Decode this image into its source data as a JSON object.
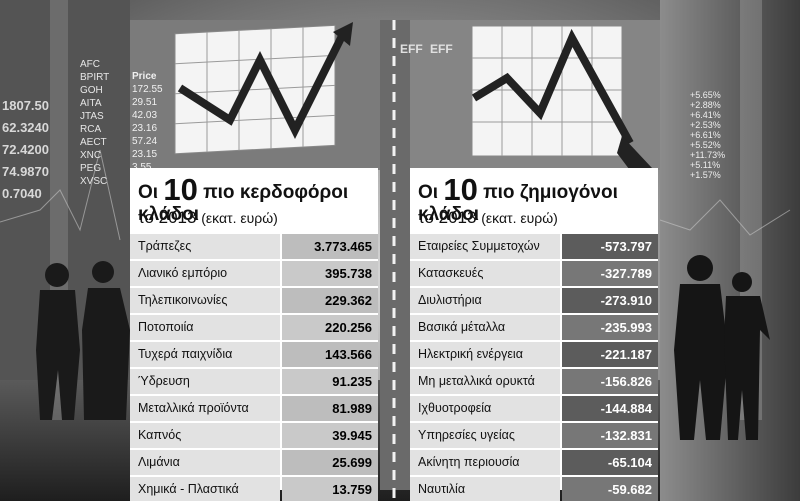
{
  "chart_data": [
    {
      "type": "table",
      "title_prefix": "Οι",
      "title_number": "10",
      "title_rest": "πιο κερδοφόροι κλάδοι",
      "subtitle_year": "το 2013",
      "subtitle_unit": "(εκατ. ευρώ)",
      "categories": [
        "Τράπεζες",
        "Λιανικό εμπόριο",
        "Τηλεπικοινωνίες",
        "Ποτοποιία",
        "Τυχερά παιχνίδια",
        "Ύδρευση",
        "Μεταλλικά προϊόντα",
        "Καπνός",
        "Λιμάνια",
        "Χημικά - Πλαστικά"
      ],
      "value_labels": [
        "3.773.465",
        "395.738",
        "229.362",
        "220.256",
        "143.566",
        "91.235",
        "81.989",
        "39.945",
        "25.699",
        "13.759"
      ],
      "values": [
        3773465,
        395738,
        229362,
        220256,
        143566,
        91235,
        81989,
        39945,
        25699,
        13759
      ]
    },
    {
      "type": "table",
      "title_prefix": "Οι",
      "title_number": "10",
      "title_rest": "πιο ζημιογόνοι κλάδοι",
      "subtitle_year": "το 2013",
      "subtitle_unit": "(εκατ. ευρώ)",
      "categories": [
        "Εταιρείες Συμμετοχών",
        "Κατασκευές",
        "Διυλιστήρια",
        "Βασικά μέταλλα",
        "Ηλεκτρική ενέργεια",
        "Μη μεταλλικά ορυκτά",
        "Ιχθυοτροφεία",
        "Υπηρεσίες υγείας",
        "Ακίνητη περιουσία",
        "Ναυτιλία"
      ],
      "value_labels": [
        "-573.797",
        "-327.789",
        "-273.910",
        "-235.993",
        "-221.187",
        "-156.826",
        "-144.884",
        "-132.831",
        "-65.104",
        "-59.682"
      ],
      "values": [
        -573797,
        -327789,
        -273910,
        -235993,
        -221187,
        -156826,
        -144884,
        -132831,
        -65104,
        -59682
      ]
    }
  ],
  "background": {
    "ticker_symbols": [
      "AFC",
      "BPIRT",
      "GOH",
      "AITA",
      "JTAS",
      "RCA",
      "AECT",
      "XNC",
      "PEG",
      "XVSC"
    ],
    "price_header": "Price",
    "prices": [
      "172.55",
      "29.51",
      "42.03",
      "23.16",
      "57.24",
      "23.15",
      "3.55"
    ],
    "left_numbers": [
      "1807.50",
      "62.3240",
      "72.4200",
      "74.9870",
      "0.7040"
    ],
    "right_changes": [
      "+5.65%",
      "+2.88%",
      "+6.41%",
      "+2.53%",
      "+6.61%",
      "+5.52%",
      "+11.73%",
      "+5.11%",
      "+1.57%"
    ],
    "efe_labels": [
      "EFF",
      "EFF"
    ],
    "grey_dark": "#3a3a3a",
    "grey_light": "#d6d6d6"
  }
}
